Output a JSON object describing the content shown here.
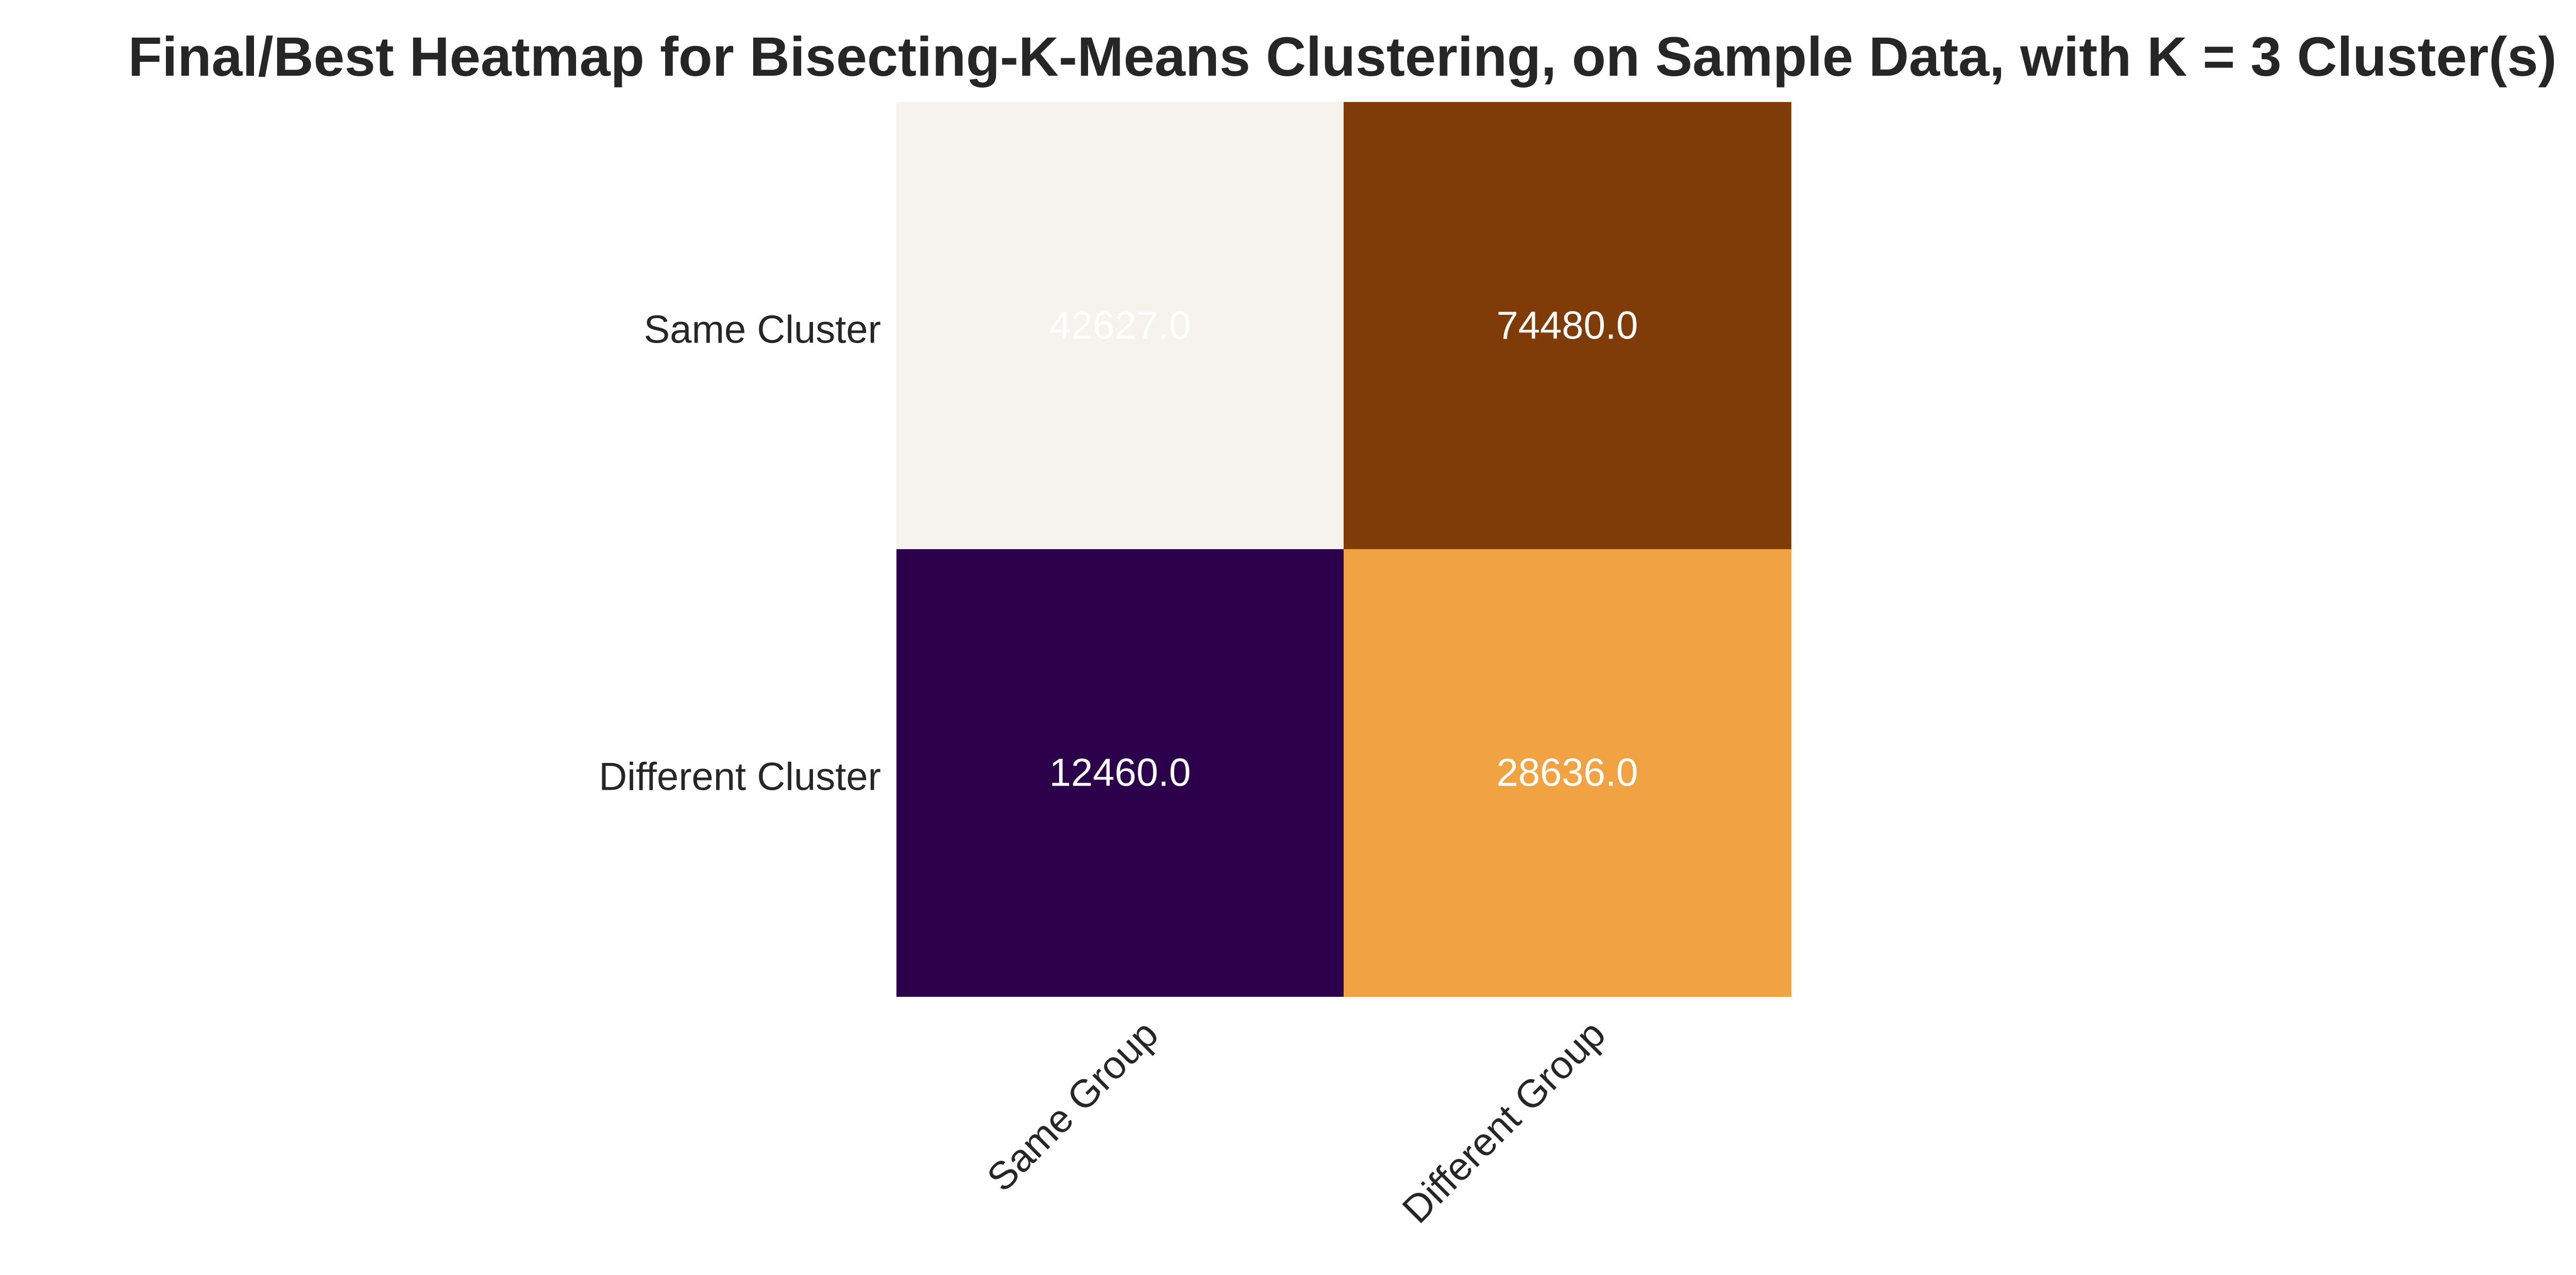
{
  "chart_data": {
    "type": "heatmap",
    "title": "Final/Best Heatmap for Bisecting-K-Means Clustering, on Sample Data, with K = 3 Cluster(s)",
    "xlabel": "",
    "ylabel": "",
    "x_categories": [
      "Same Group",
      "Different Group"
    ],
    "y_categories": [
      "Same Cluster",
      "Different Cluster"
    ],
    "values": [
      [
        42627.0,
        74480.0
      ],
      [
        12460.0,
        28636.0
      ]
    ],
    "value_labels": [
      [
        "42627.0",
        "74480.0"
      ],
      [
        "12460.0",
        "28636.0"
      ]
    ],
    "cell_colors": [
      [
        "#f6f2ee",
        "#7f3b08"
      ],
      [
        "#2d004b",
        "#f1a242"
      ]
    ],
    "annotation_color": "#ffffff",
    "colormap": "PuOr_r",
    "grid": false,
    "legend": "none"
  }
}
